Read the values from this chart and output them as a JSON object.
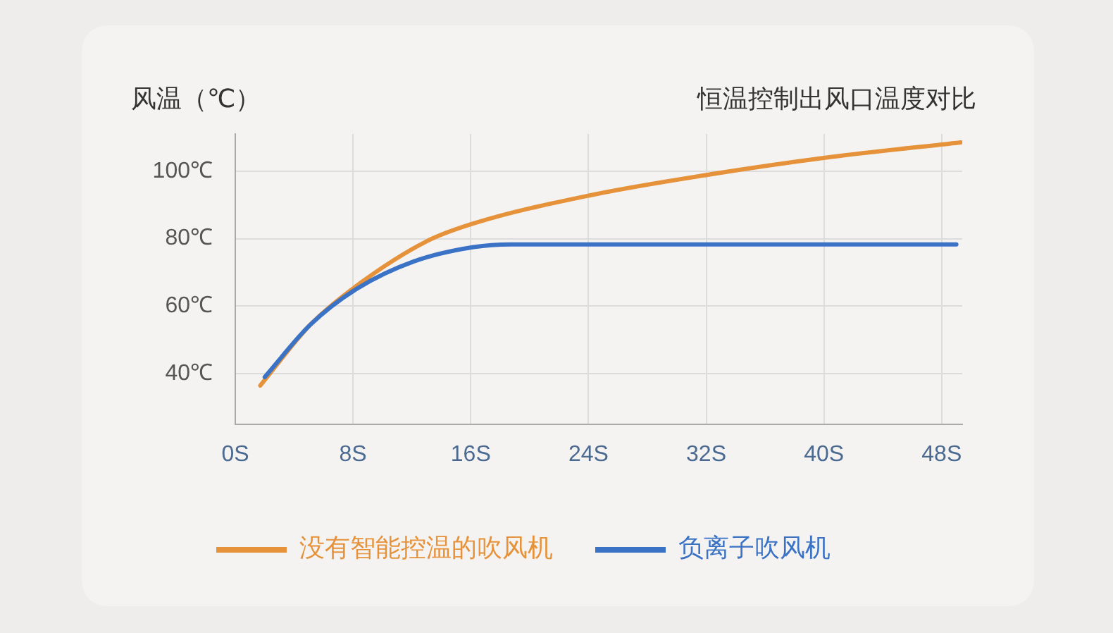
{
  "chart_data": {
    "type": "line",
    "title": "恒温控制出风口温度对比",
    "ylabel": "风温（℃）",
    "xlim": [
      0,
      49.4
    ],
    "ylim": [
      25,
      111
    ],
    "xticks": [
      {
        "value": 0,
        "label": "0S"
      },
      {
        "value": 8,
        "label": "8S"
      },
      {
        "value": 16,
        "label": "16S"
      },
      {
        "value": 24,
        "label": "24S"
      },
      {
        "value": 32,
        "label": "32S"
      },
      {
        "value": 40,
        "label": "40S"
      },
      {
        "value": 48,
        "label": "48S"
      }
    ],
    "yticks": [
      {
        "value": 40,
        "label": "40℃"
      },
      {
        "value": 60,
        "label": "60℃"
      },
      {
        "value": 80,
        "label": "80℃"
      },
      {
        "value": 100,
        "label": "100℃"
      }
    ],
    "grid": true,
    "legend": "bottom",
    "marker": "none",
    "series": [
      {
        "name": "没有智能控温的吹风机",
        "color": "#e5923a",
        "x": [
          1.7,
          5.1,
          8.2,
          13,
          16.2,
          24.2,
          32.1,
          40,
          49.3
        ],
        "values": [
          36.5,
          54.5,
          65.9,
          79.2,
          84.5,
          92.9,
          98.9,
          103.9,
          108.5
        ]
      },
      {
        "name": "负离子吹风机",
        "color": "#3a72c6",
        "x": [
          2,
          5.1,
          8.2,
          12.1,
          16.2,
          18.7,
          24,
          32,
          40,
          49
        ],
        "values": [
          39,
          54.5,
          65,
          73.2,
          77.5,
          78.3,
          78.3,
          78.3,
          78.3,
          78.3
        ]
      }
    ]
  }
}
